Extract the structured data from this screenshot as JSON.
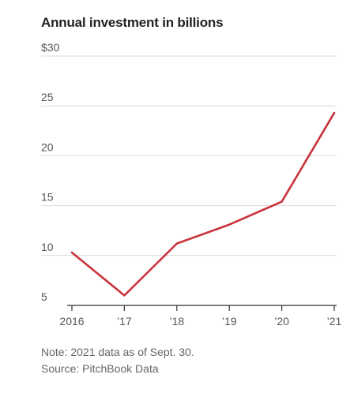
{
  "chart_data": {
    "type": "line",
    "title": "Annual investment in billions",
    "xlabel": "",
    "ylabel": "",
    "x": [
      2016,
      2017,
      2018,
      2019,
      2020,
      2021
    ],
    "x_tick_labels": [
      "2016",
      "’17",
      "’18",
      "’19",
      "’20",
      "’21"
    ],
    "y_tick_labels": [
      "5",
      "10",
      "15",
      "20",
      "25",
      "$30"
    ],
    "y_ticks": [
      5,
      10,
      15,
      20,
      25,
      30
    ],
    "ylim": [
      5,
      30
    ],
    "series": [
      {
        "values": [
          10.3,
          6.0,
          11.2,
          13.1,
          15.4,
          24.3
        ]
      }
    ],
    "grid": true,
    "colors": {
      "line": "#c8333a",
      "grid": "#d9d9d9",
      "axis": "#333333"
    }
  },
  "notes": {
    "note": "Note: 2021 data as of Sept. 30.",
    "source": "Source: PitchBook Data"
  }
}
